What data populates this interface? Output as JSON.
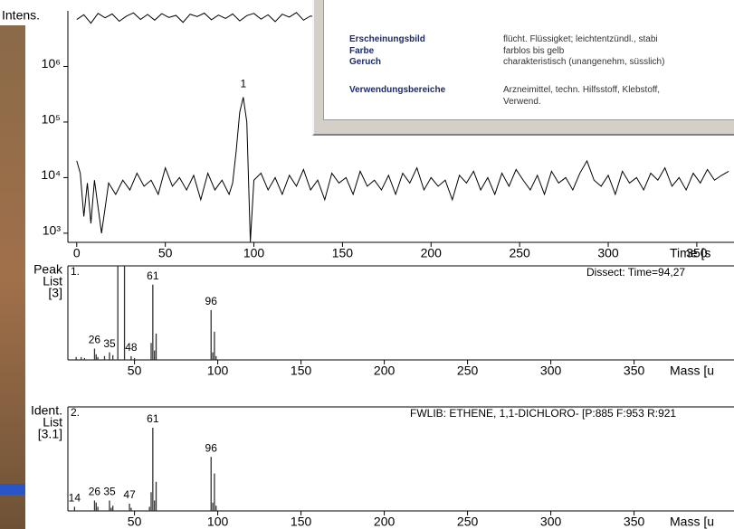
{
  "chart_data": [
    {
      "type": "line",
      "ylabel": "Intens.",
      "xlabel": "Time [s",
      "log_y": true,
      "xlim": [
        -5,
        371
      ],
      "ylim": [
        685,
        10000000
      ],
      "xticks": [
        0,
        50,
        100,
        150,
        200,
        250,
        300,
        350
      ],
      "yticks": [
        {
          "value": 1000,
          "label": "10³"
        },
        {
          "value": 10000,
          "label": "10⁴"
        },
        {
          "value": 100000,
          "label": "10⁵"
        },
        {
          "value": 1000000,
          "label": "10⁶"
        }
      ],
      "series": [
        {
          "color": "#000000",
          "x": [
            0,
            2,
            4,
            6,
            8,
            10,
            14,
            18,
            22,
            26,
            30,
            34,
            38,
            42,
            46,
            50,
            54,
            58,
            62,
            66,
            70,
            74,
            78,
            82,
            86,
            88,
            90,
            92,
            94,
            96,
            98,
            100,
            104,
            108,
            112,
            116,
            120,
            124,
            128,
            132,
            136,
            140,
            144,
            148,
            152,
            156,
            160,
            164,
            168,
            172,
            176,
            180,
            184,
            188,
            192,
            196,
            200,
            204,
            208,
            212,
            216,
            220,
            224,
            228,
            232,
            236,
            240,
            244,
            248,
            252,
            256,
            260,
            264,
            268,
            272,
            276,
            280,
            284,
            288,
            292,
            296,
            300,
            304,
            308,
            312,
            316,
            320,
            324,
            328,
            332,
            336,
            340,
            344,
            348,
            352,
            356,
            360,
            364,
            368
          ],
          "values": [
            20000,
            12000,
            2000,
            8000,
            1500,
            9000,
            1000,
            8000,
            5000,
            9000,
            6000,
            12000,
            7000,
            9000,
            5000,
            15000,
            7000,
            10000,
            6000,
            11000,
            4000,
            12000,
            6000,
            9000,
            5000,
            8000,
            30000,
            150000,
            280000,
            100000,
            700,
            9000,
            12000,
            6000,
            10000,
            5000,
            11000,
            7000,
            14000,
            6000,
            9000,
            4000,
            12000,
            8000,
            10000,
            5000,
            13000,
            7000,
            9000,
            6000,
            11000,
            5000,
            12000,
            8000,
            15000,
            6000,
            10000,
            7000,
            9000,
            4000,
            11000,
            8000,
            13000,
            6000,
            10000,
            5000,
            12000,
            7000,
            14000,
            9000,
            6000,
            11000,
            5000,
            13000,
            8000,
            10000,
            6000,
            12000,
            20000,
            9000,
            7000,
            11000,
            5000,
            13000,
            8000,
            10000,
            6000,
            12000,
            9000,
            15000,
            7000,
            10000,
            6000,
            12000,
            8000,
            14000,
            9000,
            11000,
            13000
          ]
        },
        {
          "color": "#000000",
          "x": [
            0,
            4,
            8,
            12,
            16,
            20,
            24,
            28,
            32,
            36,
            40,
            44,
            48,
            52,
            56,
            60,
            64,
            68,
            72,
            76,
            80,
            84,
            88,
            92,
            96,
            100,
            104,
            108,
            112,
            116,
            120,
            124,
            128,
            132,
            136
          ],
          "values": [
            7000000,
            8500000,
            6000000,
            9000000,
            7500000,
            8800000,
            6500000,
            8000000,
            9200000,
            7000000,
            8600000,
            6800000,
            8900000,
            7600000,
            8300000,
            6200000,
            8700000,
            7900000,
            9100000,
            6900000,
            8400000,
            7300000,
            8800000,
            6600000,
            8200000,
            9000000,
            7100000,
            8500000,
            6400000,
            8700000,
            7700000,
            9300000,
            6800000,
            8100000,
            7500000
          ]
        }
      ],
      "annotations": [
        {
          "x": 94,
          "label": 1
        }
      ]
    },
    {
      "type": "stick",
      "ylabel": [
        "Peak",
        "List",
        "[3]"
      ],
      "panel": "1.",
      "info": "Dissect: Time=94,27",
      "xlabel": "Mass [u",
      "xlim": [
        10,
        410
      ],
      "ylim": [
        0,
        100
      ],
      "xticks": [
        50,
        100,
        150,
        200,
        250,
        300,
        350
      ],
      "color": "#333333",
      "x": [
        15,
        18,
        20,
        26,
        27,
        28,
        32,
        35,
        37,
        40,
        44,
        48,
        50,
        60,
        61,
        62,
        63,
        96,
        97,
        98,
        99
      ],
      "values": [
        3,
        3,
        2,
        12,
        6,
        3,
        4,
        8,
        5,
        100,
        100,
        4,
        2,
        18,
        80,
        10,
        28,
        53,
        8,
        30,
        4
      ],
      "peak_labels": [
        26,
        35,
        48,
        61,
        96
      ]
    },
    {
      "type": "stick",
      "ylabel": [
        "Ident.",
        "List",
        "[3.1]"
      ],
      "panel": "2.",
      "info": "FWLIB: ETHENE, 1,1-DICHLORO- [P:885 F:953 R:921",
      "xlabel": "Mass [u",
      "xlim": [
        10,
        410
      ],
      "ylim": [
        0,
        100
      ],
      "xticks": [
        50,
        100,
        150,
        200,
        250,
        300,
        350
      ],
      "color": "#333333",
      "x": [
        14,
        26,
        27,
        28,
        35,
        36,
        37,
        47,
        48,
        59,
        60,
        61,
        62,
        63,
        96,
        97,
        98,
        99
      ],
      "values": [
        4,
        10,
        8,
        4,
        10,
        3,
        5,
        7,
        3,
        4,
        18,
        80,
        10,
        28,
        52,
        8,
        36,
        5
      ],
      "peak_labels": [
        14,
        26,
        35,
        47,
        61,
        96
      ]
    }
  ],
  "window": {
    "rows": [
      {
        "label": "Erscheinungsbild",
        "value": "flücht. Flüssigket; leichtentzündl., stabi"
      },
      {
        "label": "Farbe",
        "value": "farblos bis gelb"
      },
      {
        "label": "Geruch",
        "value": "charakteristisch (unangenehm, süsslich)"
      },
      {
        "label": "Verwendungsbereiche",
        "value": "Arzneimittel, techn. Hilfsstoff, Klebstoff,"
      }
    ],
    "continuation": "Verwend."
  }
}
